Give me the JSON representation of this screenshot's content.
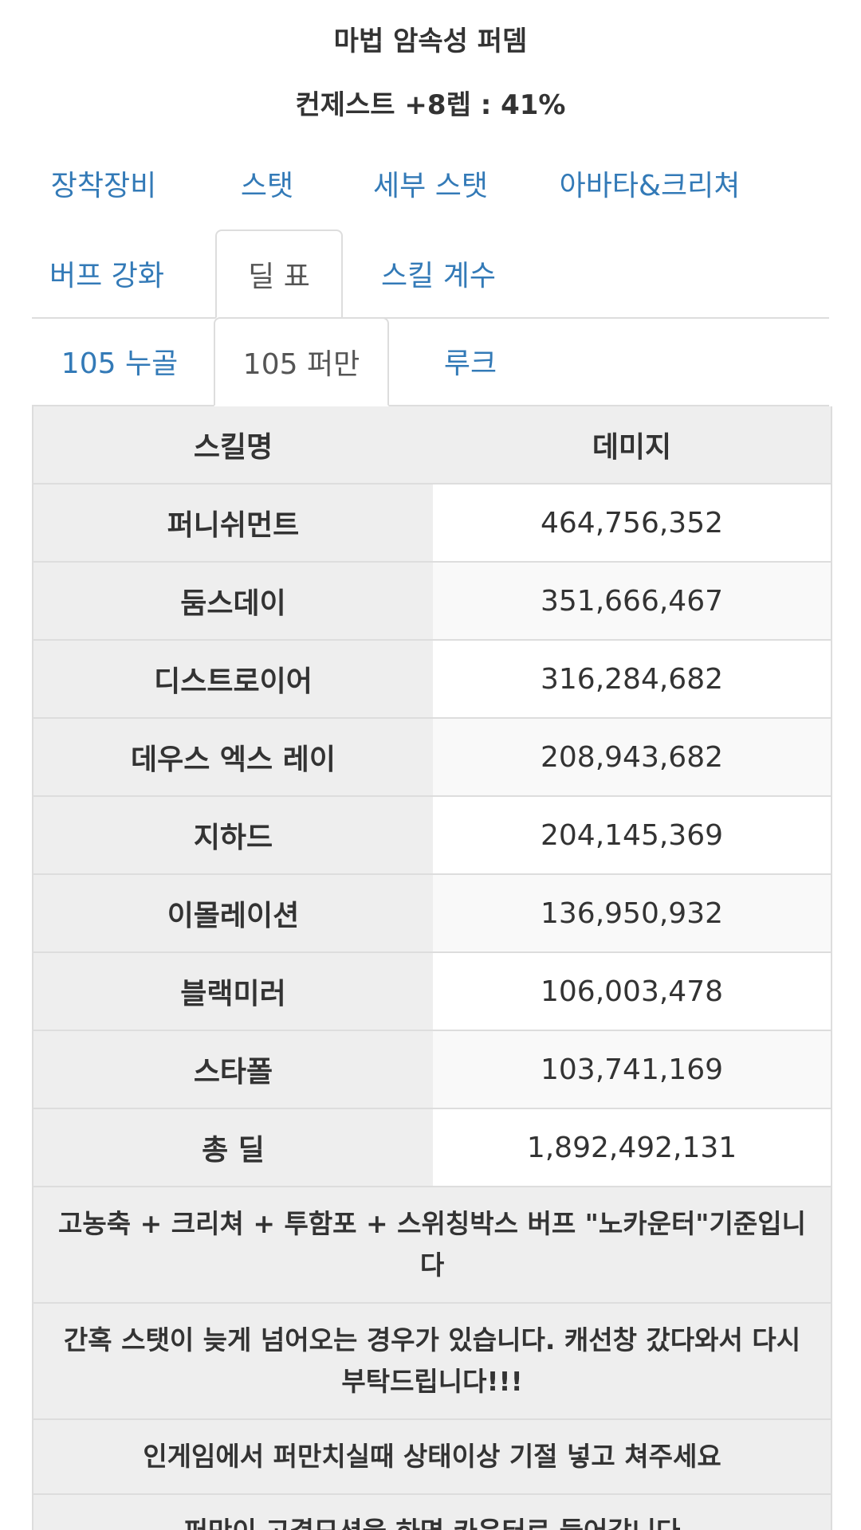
{
  "header": {
    "title": "마법 암속성 퍼뎀",
    "subtitle": "컨제스트 +8렙 : 41%"
  },
  "tabs_row1": [
    {
      "label": "장착장비"
    },
    {
      "label": "스탯"
    },
    {
      "label": "세부 스탯"
    },
    {
      "label": "아바타&크리쳐"
    }
  ],
  "tabs_row2": [
    {
      "label": "버프 강화"
    },
    {
      "label": "딜 표"
    },
    {
      "label": "스킬 계수"
    }
  ],
  "subtabs": [
    {
      "label": "105 누골"
    },
    {
      "label": "105 퍼만"
    },
    {
      "label": "루크"
    }
  ],
  "table": {
    "headers": [
      "스킬명",
      "데미지"
    ],
    "rows": [
      {
        "skill": "퍼니쉬먼트",
        "damage": "464,756,352"
      },
      {
        "skill": "둠스데이",
        "damage": "351,666,467"
      },
      {
        "skill": "디스트로이어",
        "damage": "316,284,682"
      },
      {
        "skill": "데우스 엑스 레이",
        "damage": "208,943,682"
      },
      {
        "skill": "지하드",
        "damage": "204,145,369"
      },
      {
        "skill": "이몰레이션",
        "damage": "136,950,932"
      },
      {
        "skill": "블랙미러",
        "damage": "106,003,478"
      },
      {
        "skill": "스타폴",
        "damage": "103,741,169"
      },
      {
        "skill": "총 딜",
        "damage": "1,892,492,131"
      }
    ]
  },
  "notes": [
    "고농축 + 크리쳐 + 투함포 + 스위칭박스 버프 \"노카운터\"기준입니다",
    "간혹 스탯이 늦게 넘어오는 경우가 있습니다. 캐선창 갔다와서 다시 부탁드립니다!!!",
    "인게임에서 퍼만치실때 상태이상 기절 넣고 쳐주세요",
    "퍼만이 고결모션을 하면 카운터로 들어갑니다"
  ],
  "colors": {
    "link": "#337ab7",
    "active_tab_text": "#555555",
    "cell_gray": "#eeeeee",
    "border": "#dddddd"
  }
}
